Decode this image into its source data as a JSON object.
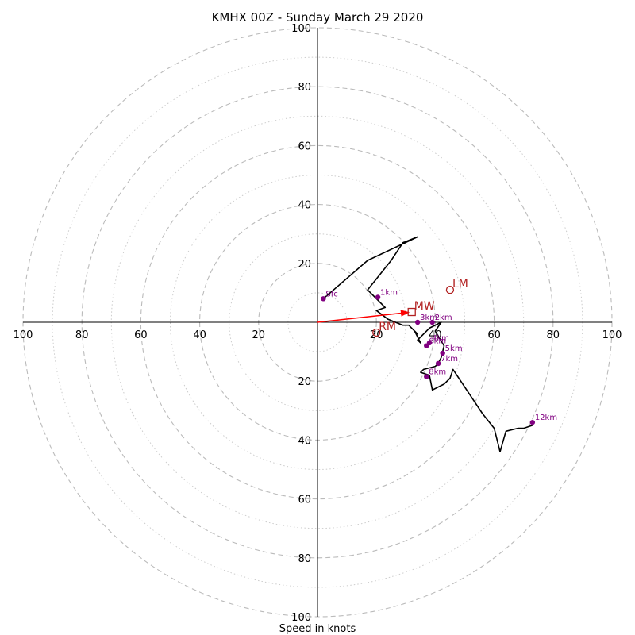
{
  "chart_data": {
    "type": "hodograph",
    "title": "KMHX 00Z - Sunday March 29 2020",
    "xlabel": "Speed in knots",
    "xlim": [
      -100,
      100
    ],
    "ylim": [
      -100,
      100
    ],
    "ring_step_major": 20,
    "ring_step_minor": 10,
    "x_ticks": [
      "100",
      "80",
      "60",
      "40",
      "20",
      "20",
      "40",
      "60",
      "80",
      "100"
    ],
    "x_tick_values": [
      -100,
      -80,
      -60,
      -40,
      -20,
      20,
      40,
      60,
      80,
      100
    ],
    "y_ticks": [
      "100",
      "80",
      "60",
      "40",
      "20",
      "20",
      "40",
      "60",
      "80",
      "100"
    ],
    "y_tick_values": [
      100,
      80,
      60,
      40,
      20,
      -20,
      -40,
      -60,
      -80,
      -100
    ],
    "colors": {
      "trace": "#000000",
      "height_marker": "#800080",
      "storm_motion": "#b22222",
      "mean_wind_arrow": "#ff0000",
      "major_ring": "#bbbbbb",
      "minor_ring": "#cccccc"
    },
    "wind_trace": {
      "u": [
        2,
        17,
        34,
        29,
        25,
        17,
        23,
        20,
        24,
        29,
        31,
        32,
        34,
        33,
        35,
        34,
        38,
        42,
        40,
        43,
        42,
        41,
        40,
        36,
        35,
        38,
        39,
        43,
        45,
        46,
        56,
        60,
        62,
        64,
        68,
        70,
        73
      ],
      "v": [
        8,
        21,
        29,
        27,
        21,
        11,
        5,
        4,
        1,
        -1,
        -1,
        -2,
        -4,
        -3,
        -7,
        -6,
        -2,
        0,
        -3,
        -8,
        -12,
        -14,
        -15,
        -16,
        -17,
        -18,
        -23,
        -21,
        -19,
        -16,
        -31,
        -36,
        -44,
        -37,
        -36,
        -36,
        -35
      ]
    },
    "height_markers": [
      {
        "label": "Sfc",
        "u": 2,
        "v": 8
      },
      {
        "label": "1km",
        "u": 20.5,
        "v": 8.5
      },
      {
        "label": "2km",
        "u": 39,
        "v": 0
      },
      {
        "label": "3km",
        "u": 34,
        "v": 0
      },
      {
        "label": "4km",
        "u": 38,
        "v": -7
      },
      {
        "label": "6km",
        "u": 37,
        "v": -8
      },
      {
        "label": "5km",
        "u": 42.5,
        "v": -10.5
      },
      {
        "label": "7km",
        "u": 41,
        "v": -14
      },
      {
        "label": "8km",
        "u": 37,
        "v": -18.5
      },
      {
        "label": "12km",
        "u": 73,
        "v": -34
      }
    ],
    "storm_motion": [
      {
        "label": "MW",
        "marker": "square",
        "u": 32,
        "v": 3.5
      },
      {
        "label": "LM",
        "marker": "circle",
        "u": 45,
        "v": 11
      },
      {
        "label": "RM",
        "marker": "circle",
        "u": 20,
        "v": -3.5
      }
    ],
    "mean_wind_arrow": {
      "u": 32,
      "v": 3.5
    }
  }
}
